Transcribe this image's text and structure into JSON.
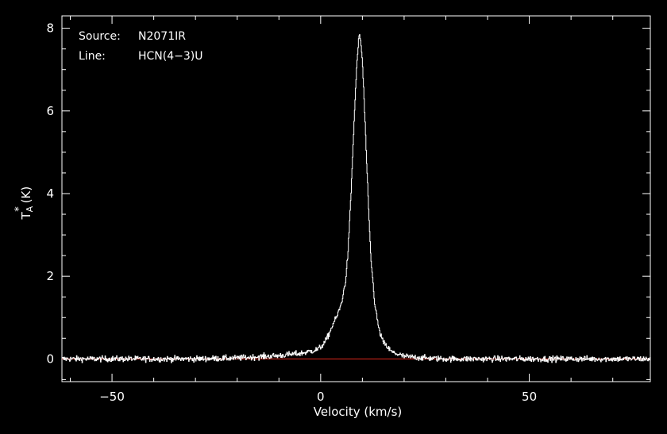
{
  "chart_data": {
    "type": "line",
    "annotations": [
      {
        "key": "Source:",
        "value": "N2071IR"
      },
      {
        "key": "Line:",
        "value": "HCN(4−3)U"
      }
    ],
    "xlabel": "Velocity (km/s)",
    "ylabel_main": "T",
    "ylabel_sup": "*",
    "ylabel_sub": "A",
    "ylabel_unit": "(K)",
    "xlim": [
      -62,
      79
    ],
    "ylim": [
      -0.55,
      8.3
    ],
    "xticks": [
      -50,
      0,
      50
    ],
    "yticks": [
      0,
      2,
      4,
      6,
      8
    ],
    "xtick_labels": [
      "−50",
      "0",
      "50"
    ],
    "ytick_labels": [
      "0",
      "2",
      "4",
      "6",
      "8"
    ],
    "baseline": 0,
    "series": [
      {
        "x": [
          -62,
          -50,
          -40,
          -30,
          -20,
          -10,
          -5,
          -3,
          -1,
          0,
          1,
          2,
          3,
          4,
          5,
          6,
          6.5,
          7,
          7.5,
          8,
          8.5,
          9,
          9.3,
          9.6,
          10,
          10.5,
          11,
          11.5,
          12,
          13,
          14,
          15,
          17,
          20,
          25,
          30,
          40,
          50,
          60,
          70,
          79
        ],
        "y": [
          0,
          0,
          0,
          0,
          0.02,
          0.08,
          0.13,
          0.17,
          0.22,
          0.28,
          0.4,
          0.6,
          0.85,
          1.05,
          1.35,
          1.9,
          2.5,
          3.4,
          4.5,
          5.7,
          6.8,
          7.6,
          7.85,
          7.7,
          7.2,
          6.1,
          4.8,
          3.6,
          2.5,
          1.3,
          0.7,
          0.4,
          0.17,
          0.06,
          0.02,
          0,
          0,
          0,
          0,
          0,
          0
        ],
        "noise_rms": 0.05,
        "color": "#ffffff"
      }
    ],
    "baseline_color": "#e0281c",
    "axis_color": "#ffffff",
    "background": "#000000",
    "grid": false
  }
}
